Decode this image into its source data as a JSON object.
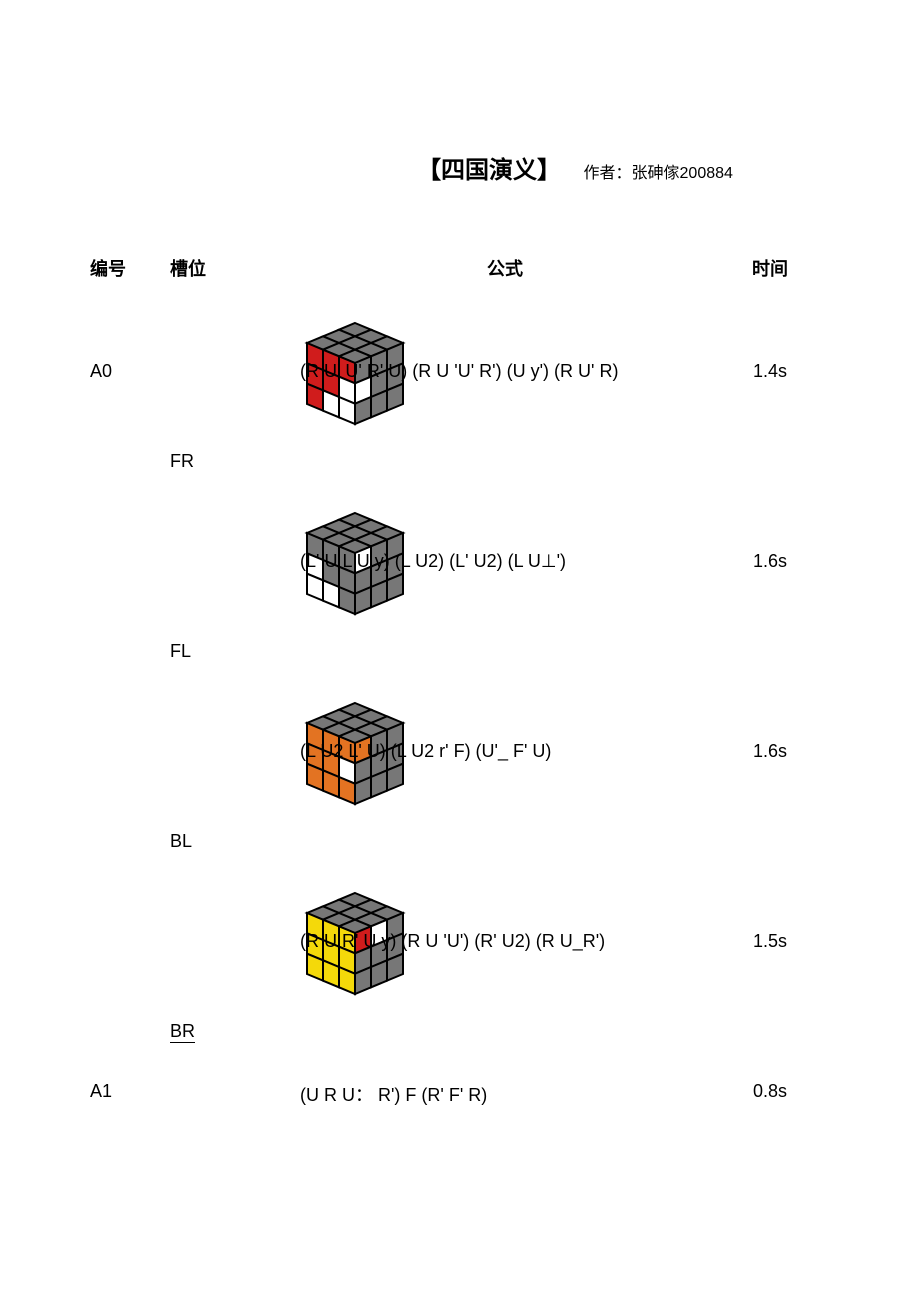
{
  "title": {
    "main": "【四国演义】",
    "author_label": "作者：张砷傢200884"
  },
  "headers": {
    "id": "编号",
    "slot": "槽位",
    "formula": "公式",
    "time": "时间"
  },
  "rows": [
    {
      "id": "A0",
      "slot": "FR",
      "slot_underline": false,
      "formula": "(R U' U' R' U) (R U 'U' R') (U y') (R U' R)",
      "time": "1.4s",
      "has_cube": true,
      "cube": {
        "top_color": "#777777",
        "front_colors": [
          [
            "#d01c1c",
            "#d01c1c",
            "#d01c1c"
          ],
          [
            "#d01c1c",
            "#d01c1c",
            "#ffffff"
          ],
          [
            "#d01c1c",
            "#ffffff",
            "#ffffff"
          ]
        ],
        "right_colors": [
          [
            "#777777",
            "#777777",
            "#777777"
          ],
          [
            "#ffffff",
            "#777777",
            "#777777"
          ],
          [
            "#777777",
            "#777777",
            "#777777"
          ]
        ]
      }
    },
    {
      "id": "",
      "slot": "FL",
      "slot_underline": false,
      "formula": "(L' U L U y) (L U2) (L' U2) (L U⊥')",
      "time": "1.6s",
      "has_cube": true,
      "cube": {
        "top_color": "#777777",
        "front_colors": [
          [
            "#777777",
            "#777777",
            "#777777"
          ],
          [
            "#ffffff",
            "#777777",
            "#777777"
          ],
          [
            "#ffffff",
            "#ffffff",
            "#777777"
          ]
        ],
        "right_colors": [
          [
            "#ffffff",
            "#777777",
            "#777777"
          ],
          [
            "#777777",
            "#777777",
            "#777777"
          ],
          [
            "#777777",
            "#777777",
            "#777777"
          ]
        ]
      }
    },
    {
      "id": "",
      "slot": "BL",
      "slot_underline": false,
      "formula": "(L U2 L' U) (L U2 r' F) (U'_ F' U)",
      "time": "1.6s",
      "has_cube": true,
      "cube": {
        "top_color": "#777777",
        "front_colors": [
          [
            "#e37322",
            "#e37322",
            "#e37322"
          ],
          [
            "#e37322",
            "#e37322",
            "#ffffff"
          ],
          [
            "#e37322",
            "#e37322",
            "#e37322"
          ]
        ],
        "right_colors": [
          [
            "#e37322",
            "#777777",
            "#777777"
          ],
          [
            "#777777",
            "#777777",
            "#777777"
          ],
          [
            "#777777",
            "#777777",
            "#777777"
          ]
        ]
      }
    },
    {
      "id": "",
      "slot": "BR",
      "slot_underline": true,
      "formula": "(R U R' U y) (R U 'U') (R' U2) (R U_R')",
      "time": "1.5s",
      "has_cube": true,
      "cube": {
        "top_color": "#777777",
        "front_colors": [
          [
            "#f4d90a",
            "#f4d90a",
            "#f4d90a"
          ],
          [
            "#f4d90a",
            "#f4d90a",
            "#f4d90a"
          ],
          [
            "#f4d90a",
            "#f4d90a",
            "#f4d90a"
          ]
        ],
        "right_colors": [
          [
            "#d01c1c",
            "#ffffff",
            "#777777"
          ],
          [
            "#777777",
            "#777777",
            "#777777"
          ],
          [
            "#777777",
            "#777777",
            "#777777"
          ]
        ]
      }
    },
    {
      "id": "A1",
      "slot": "",
      "slot_underline": false,
      "formula": "(U R U：  R') F (R' F' R)",
      "time": "0.8s",
      "has_cube": false,
      "wrap": true
    }
  ],
  "colors": {
    "text": "#000000",
    "background": "#ffffff",
    "edge": "#000000"
  }
}
